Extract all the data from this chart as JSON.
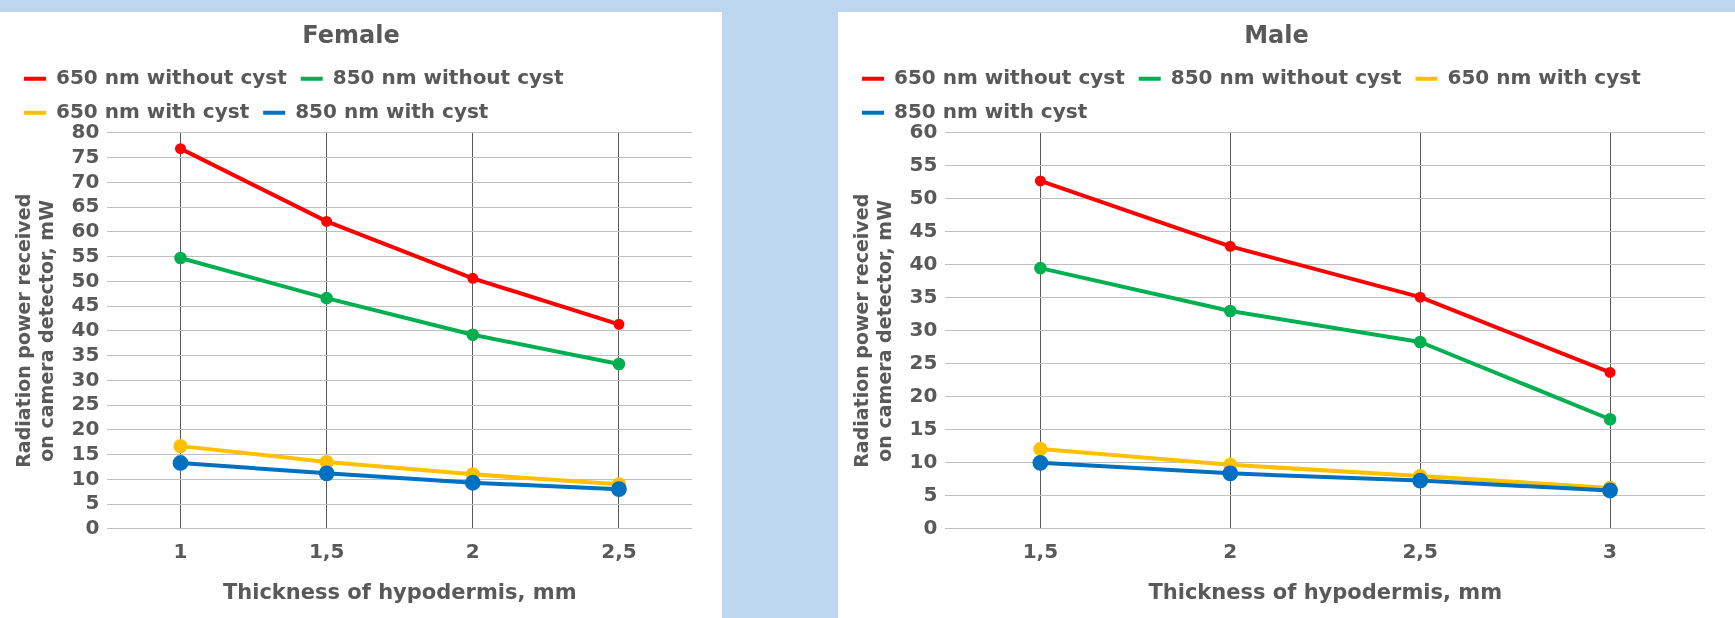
{
  "chart_data": [
    {
      "type": "line",
      "title": "Female",
      "xlabel": "Thickness of hypodermis, mm",
      "ylabel": "Radiation power received on camera detector, mW",
      "categories": [
        "1",
        "1,5",
        "2",
        "2,5"
      ],
      "series": [
        {
          "name": "650 nm without cyst",
          "color": "#ff0000",
          "values": [
            76.8,
            62.1,
            50.6,
            41.3
          ]
        },
        {
          "name": "850 nm without cyst",
          "color": "#00b050",
          "values": [
            54.7,
            46.6,
            39.2,
            33.3
          ]
        },
        {
          "name": "650 nm with cyst",
          "color": "#ffc000",
          "values": [
            16.7,
            13.5,
            11,
            9
          ]
        },
        {
          "name": "850 nm with cyst",
          "color": "#0070c0",
          "values": [
            13.3,
            11.2,
            9.3,
            8
          ]
        }
      ],
      "ylim": [
        0,
        80
      ],
      "yticks": [
        0,
        5,
        10,
        15,
        20,
        25,
        30,
        35,
        40,
        45,
        50,
        55,
        60,
        65,
        70,
        75,
        80
      ],
      "grid": true,
      "legend": "top",
      "marker": "circle",
      "line_style": "solid"
    },
    {
      "type": "line",
      "title": "Male",
      "xlabel": "Thickness of hypodermis, mm",
      "ylabel": "Radiation power received on camera detector, mW",
      "categories": [
        "1,5",
        "2",
        "2,5",
        "3"
      ],
      "series": [
        {
          "name": "650 nm without cyst",
          "color": "#ff0000",
          "values": [
            52.7,
            42.8,
            35.1,
            23.7
          ]
        },
        {
          "name": "850 nm without cyst",
          "color": "#00b050",
          "values": [
            39.5,
            33,
            28.3,
            16.6
          ]
        },
        {
          "name": "650 nm with cyst",
          "color": "#ffc000",
          "values": [
            12.1,
            9.7,
            8,
            6.2
          ]
        },
        {
          "name": "850 nm with cyst",
          "color": "#0070c0",
          "values": [
            10,
            8.4,
            7.3,
            5.8
          ]
        }
      ],
      "ylim": [
        0,
        60
      ],
      "yticks": [
        0,
        5,
        10,
        15,
        20,
        25,
        30,
        35,
        40,
        45,
        50,
        55,
        60
      ],
      "grid": true,
      "legend": "top",
      "marker": "circle",
      "line_style": "solid"
    }
  ]
}
